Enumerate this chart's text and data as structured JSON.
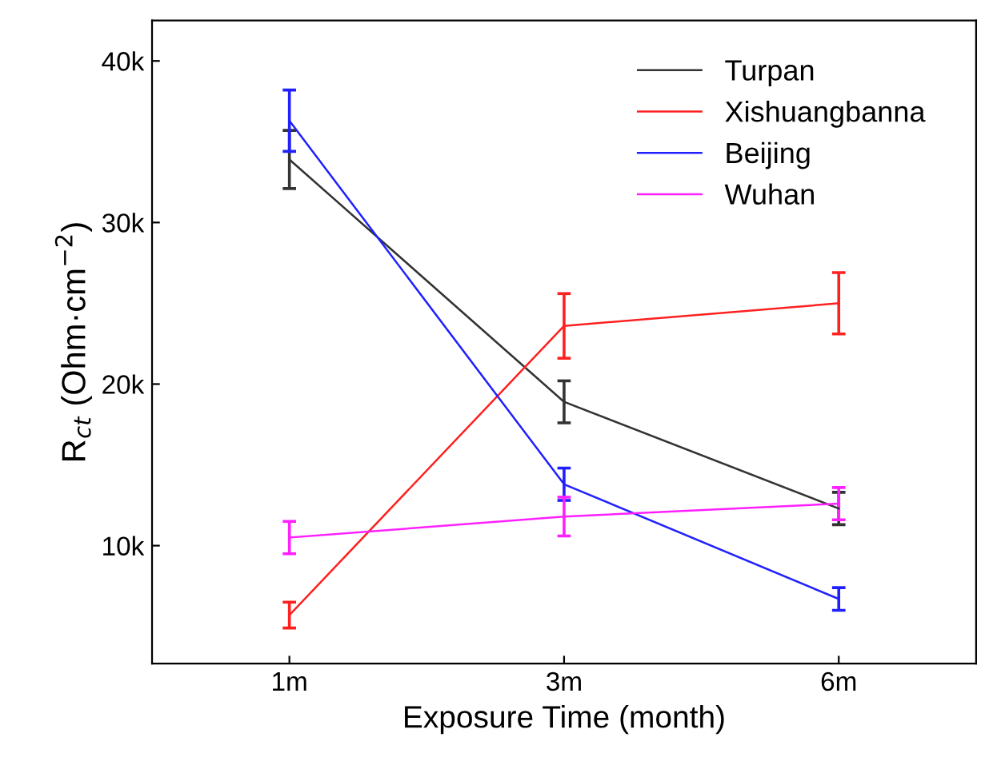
{
  "chart_data": {
    "type": "line",
    "xlabel": "Exposure Time (month)",
    "ylabel": "R$_{ct}$ (Ohm·cm$^{−2}$)",
    "categories": [
      "1m",
      "3m",
      "6m"
    ],
    "series": [
      {
        "name": "Turpan",
        "color": "#333333",
        "values": [
          33900,
          18900,
          12300
        ],
        "errors": [
          1800,
          1300,
          1000
        ]
      },
      {
        "name": "Xishuangbanna",
        "color": "#ff2020",
        "values": [
          5700,
          23600,
          25000
        ],
        "errors": [
          800,
          2000,
          1900
        ]
      },
      {
        "name": "Beijing",
        "color": "#2020ff",
        "values": [
          36300,
          13800,
          6700
        ],
        "errors": [
          1900,
          1000,
          700
        ]
      },
      {
        "name": "Wuhan",
        "color": "#ff20ff",
        "values": [
          10500,
          11800,
          12600
        ],
        "errors": [
          1000,
          1200,
          1000
        ]
      }
    ],
    "ylim": [
      2700,
      42500
    ],
    "yticks": [
      {
        "value": 10000,
        "label": "10k"
      },
      {
        "value": 20000,
        "label": "20k"
      },
      {
        "value": 30000,
        "label": "30k"
      },
      {
        "value": 40000,
        "label": "40k"
      }
    ],
    "grid": false,
    "legend": "top right",
    "marker": "none",
    "line_style": "solid"
  }
}
